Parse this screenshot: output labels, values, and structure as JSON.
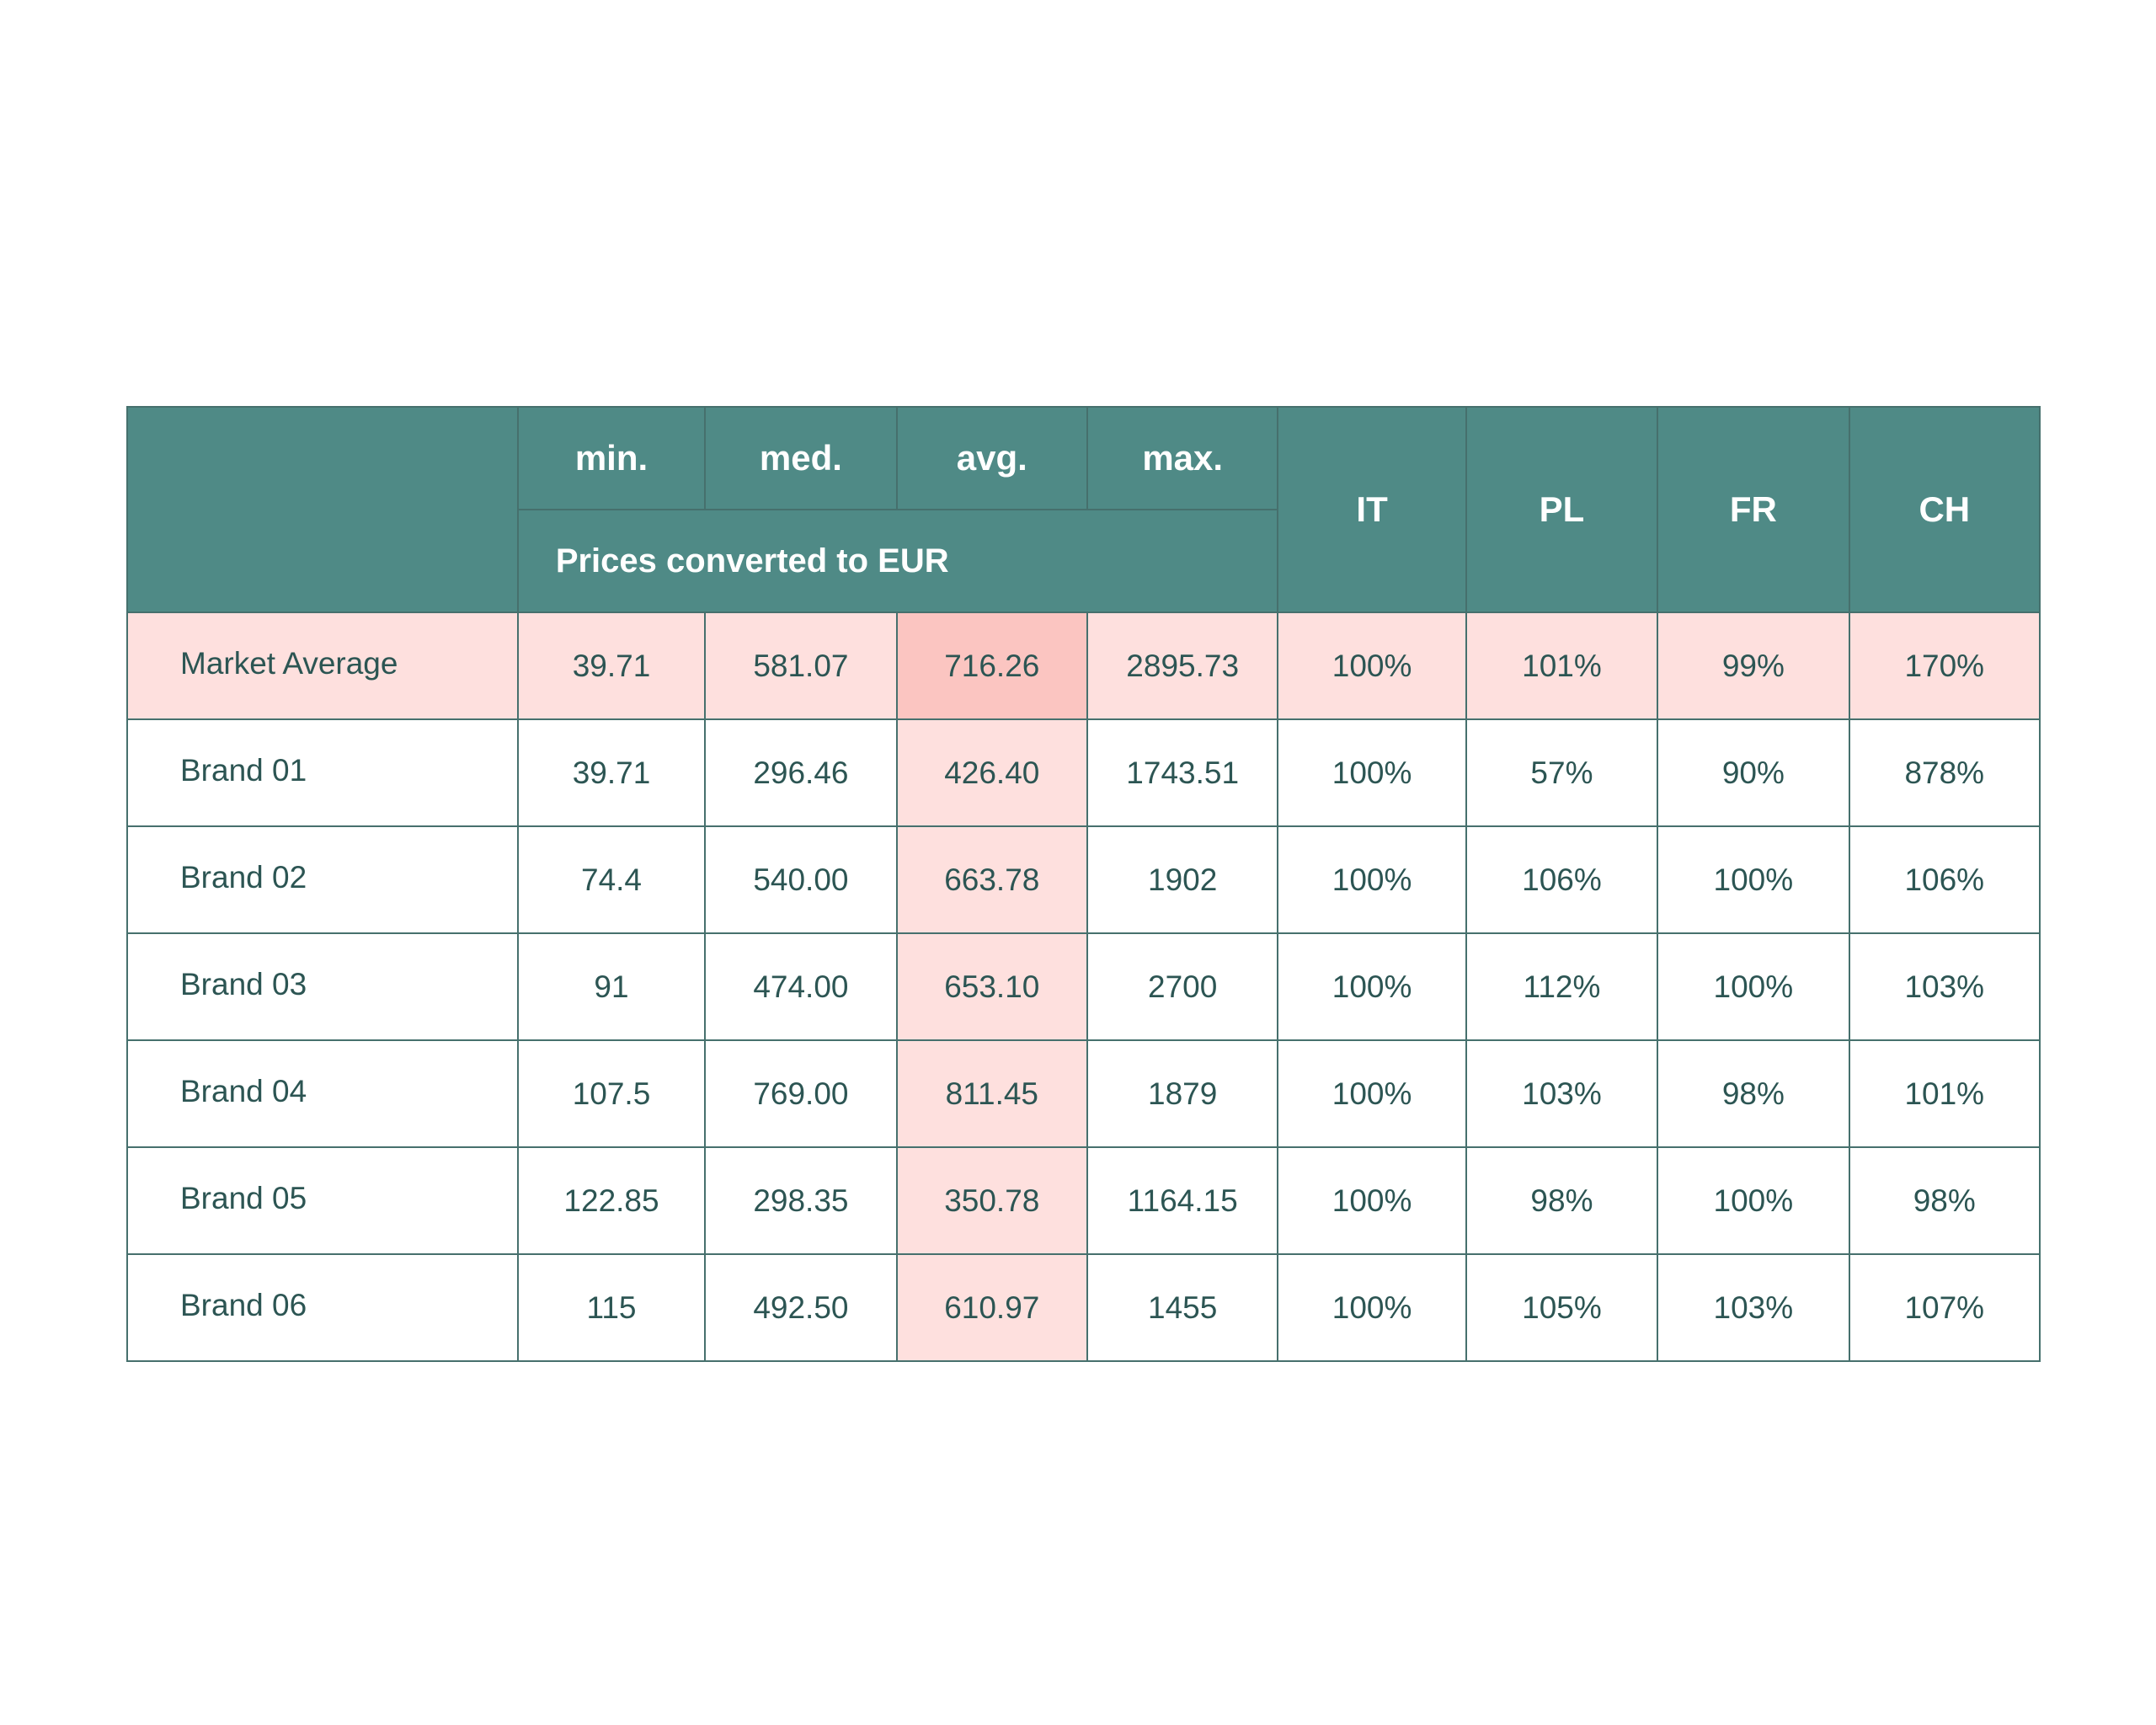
{
  "chart_data": {
    "type": "table",
    "header": {
      "stat_columns": [
        "min.",
        "med.",
        "avg.",
        "max."
      ],
      "stat_group_label": "Prices converted to EUR",
      "country_columns": [
        "IT",
        "PL",
        "FR",
        "CH"
      ]
    },
    "columns": [
      "",
      "min.",
      "med.",
      "avg.",
      "max.",
      "IT",
      "PL",
      "FR",
      "CH"
    ],
    "highlight_row": "Market Average",
    "highlight_column": "avg.",
    "colors": {
      "header_bg": "#4f8a86",
      "header_text": "#ffffff",
      "body_text": "#2c5553",
      "highlight": "#fee0de",
      "highlight_strong": "#fbc5c1",
      "border": "#46706d"
    },
    "rows": [
      {
        "label": "Market Average",
        "min": "39.71",
        "med": "581.07",
        "avg": "716.26",
        "max": "2895.73",
        "IT": "100%",
        "PL": "101%",
        "FR": "99%",
        "CH": "170%"
      },
      {
        "label": "Brand 01",
        "min": "39.71",
        "med": "296.46",
        "avg": "426.40",
        "max": "1743.51",
        "IT": "100%",
        "PL": "57%",
        "FR": "90%",
        "CH": "878%"
      },
      {
        "label": "Brand 02",
        "min": "74.4",
        "med": "540.00",
        "avg": "663.78",
        "max": "1902",
        "IT": "100%",
        "PL": "106%",
        "FR": "100%",
        "CH": "106%"
      },
      {
        "label": "Brand 03",
        "min": "91",
        "med": "474.00",
        "avg": "653.10",
        "max": "2700",
        "IT": "100%",
        "PL": "112%",
        "FR": "100%",
        "CH": "103%"
      },
      {
        "label": "Brand 04",
        "min": "107.5",
        "med": "769.00",
        "avg": "811.45",
        "max": "1879",
        "IT": "100%",
        "PL": "103%",
        "FR": "98%",
        "CH": "101%"
      },
      {
        "label": "Brand 05",
        "min": "122.85",
        "med": "298.35",
        "avg": "350.78",
        "max": "1164.15",
        "IT": "100%",
        "PL": "98%",
        "FR": "100%",
        "CH": "98%"
      },
      {
        "label": "Brand 06",
        "min": "115",
        "med": "492.50",
        "avg": "610.97",
        "max": "1455",
        "IT": "100%",
        "PL": "105%",
        "FR": "103%",
        "CH": "107%"
      }
    ]
  }
}
